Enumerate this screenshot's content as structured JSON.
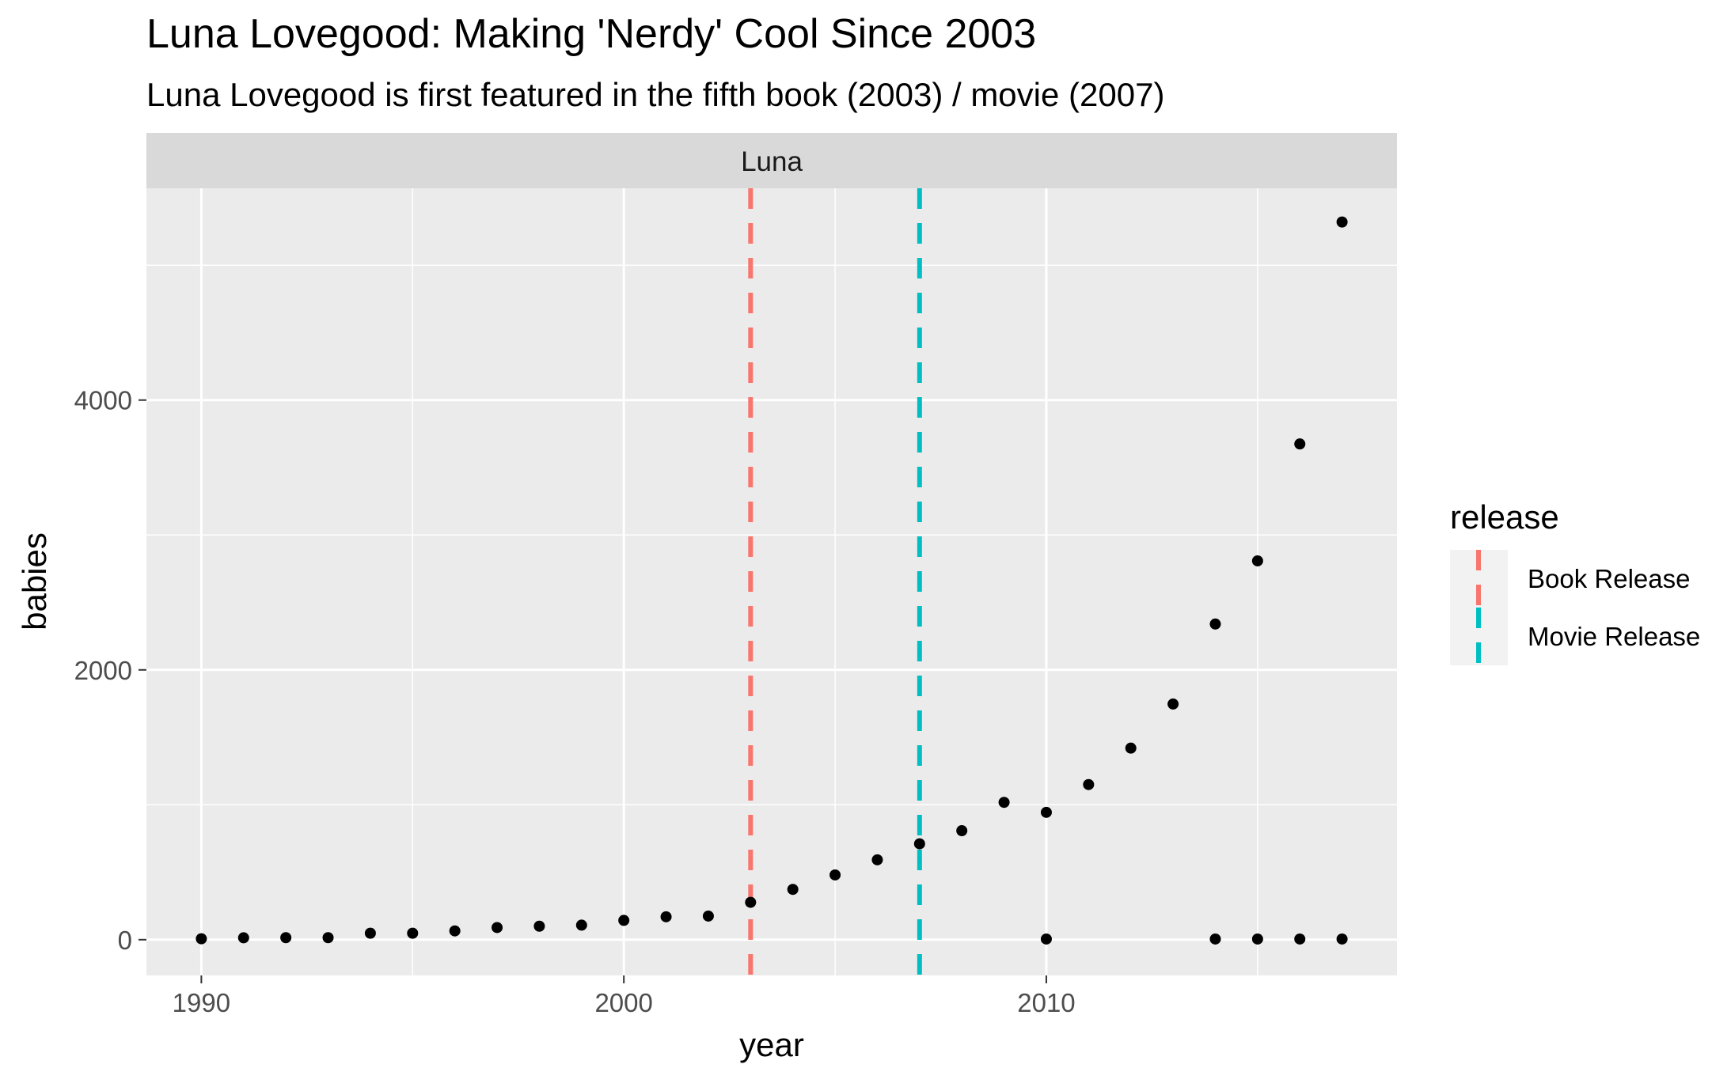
{
  "chart_data": {
    "type": "scatter",
    "title": "Luna Lovegood: Making 'Nerdy' Cool Since 2003",
    "subtitle": "Luna Lovegood is first featured in the fifth book (2003) / movie (2007)",
    "facet_label": "Luna",
    "xlabel": "year",
    "ylabel": "babies",
    "xlim": [
      1988.7,
      2018.3
    ],
    "ylim": [
      -265,
      5570
    ],
    "x_ticks": [
      1990,
      2000,
      2010
    ],
    "y_ticks": [
      0,
      2000,
      4000
    ],
    "x_minor": [
      1995,
      2005,
      2015
    ],
    "y_minor": [
      1000,
      3000,
      5000
    ],
    "grid": true,
    "points": [
      {
        "x": 1990,
        "y": 7
      },
      {
        "x": 1991,
        "y": 14
      },
      {
        "x": 1992,
        "y": 15
      },
      {
        "x": 1993,
        "y": 15
      },
      {
        "x": 1994,
        "y": 48
      },
      {
        "x": 1995,
        "y": 48
      },
      {
        "x": 1996,
        "y": 65
      },
      {
        "x": 1997,
        "y": 90
      },
      {
        "x": 1998,
        "y": 100
      },
      {
        "x": 1999,
        "y": 108
      },
      {
        "x": 2000,
        "y": 143
      },
      {
        "x": 2001,
        "y": 170
      },
      {
        "x": 2002,
        "y": 175
      },
      {
        "x": 2003,
        "y": 277
      },
      {
        "x": 2004,
        "y": 373
      },
      {
        "x": 2005,
        "y": 480
      },
      {
        "x": 2006,
        "y": 592
      },
      {
        "x": 2007,
        "y": 711
      },
      {
        "x": 2008,
        "y": 808
      },
      {
        "x": 2009,
        "y": 1018
      },
      {
        "x": 2010,
        "y": 944
      },
      {
        "x": 2010,
        "y": 5
      },
      {
        "x": 2011,
        "y": 1150
      },
      {
        "x": 2012,
        "y": 1420
      },
      {
        "x": 2013,
        "y": 1747
      },
      {
        "x": 2014,
        "y": 2340
      },
      {
        "x": 2014,
        "y": 5
      },
      {
        "x": 2015,
        "y": 2808
      },
      {
        "x": 2015,
        "y": 5
      },
      {
        "x": 2016,
        "y": 3675
      },
      {
        "x": 2016,
        "y": 5
      },
      {
        "x": 2017,
        "y": 5320
      },
      {
        "x": 2017,
        "y": 5
      }
    ],
    "vlines": [
      {
        "x": 2003,
        "name": "Book Release",
        "color": "#F8766D"
      },
      {
        "x": 2007,
        "name": "Movie Release",
        "color": "#00BFC4"
      }
    ],
    "legend": {
      "title": "release",
      "placement": "right",
      "items": [
        "Book Release",
        "Movie Release"
      ]
    }
  },
  "colors": {
    "panel_bg": "#EBEBEB",
    "grid": "#FFFFFF",
    "strip_bg": "#D9D9D9",
    "point": "#000000",
    "legend_key_bg": "#F2F2F2"
  }
}
